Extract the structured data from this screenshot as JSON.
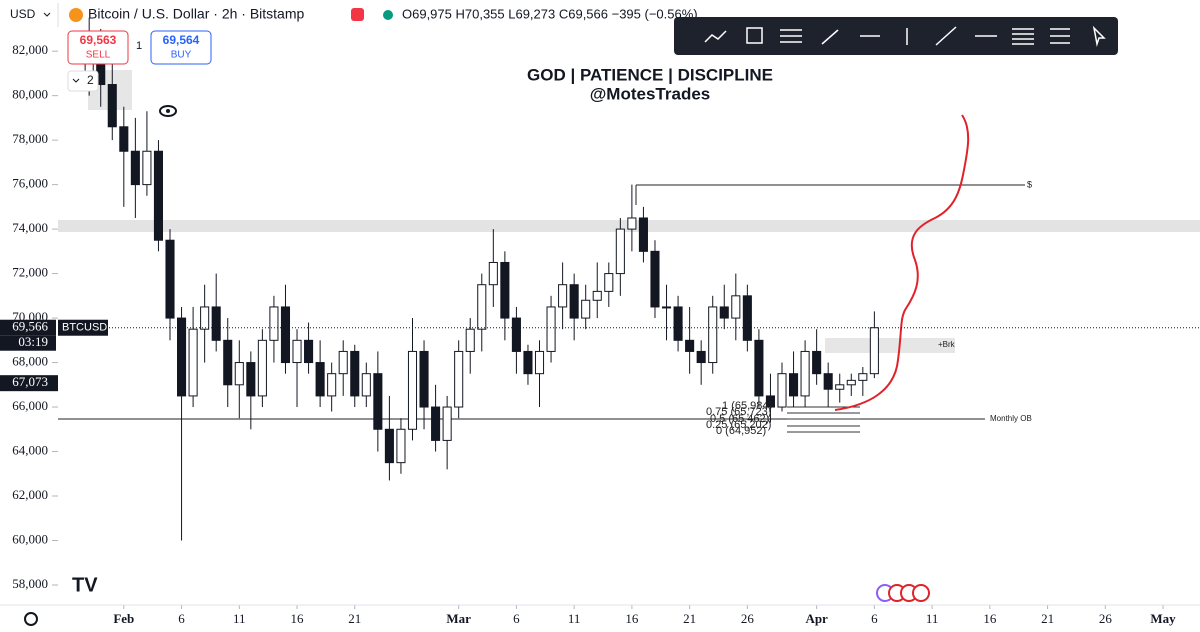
{
  "header": {
    "currency": "USD",
    "instrument": "Bitcoin / U.S. Dollar · 2h · Bitstamp",
    "ohlc": "O69,975 H70,355 L69,273 C69,566 −395 (−0.56%)"
  },
  "trade": {
    "sell_price": "69,563",
    "sell_label": "SELL",
    "quantity": "1",
    "buy_price": "69,564",
    "buy_label": "BUY",
    "collapsed_count": "2"
  },
  "chart_data": {
    "type": "candlestick",
    "title": "GOD | PATIENCE | DISCIPLINE",
    "subtitle": "@MotesTrades",
    "x": [
      -3,
      -2,
      -1,
      0,
      1,
      2,
      3,
      4,
      5,
      6,
      7,
      8,
      9,
      10,
      11,
      12,
      13,
      14,
      15,
      16,
      17,
      18,
      19,
      20,
      21,
      22,
      23,
      24,
      25,
      26,
      27,
      28,
      29,
      30,
      31,
      32,
      33,
      34,
      35,
      36,
      37,
      38,
      39,
      40,
      41,
      42,
      43,
      44,
      45,
      46,
      47,
      48,
      49,
      50,
      51,
      52,
      53,
      54,
      55,
      56,
      57,
      58,
      59,
      60,
      61,
      62,
      63,
      64,
      65
    ],
    "open": [
      81000,
      82500,
      80500,
      78600,
      77500,
      76000,
      77500,
      73500,
      70000,
      66500,
      69500,
      70500,
      69000,
      67000,
      68000,
      66500,
      69000,
      70500,
      68000,
      69000,
      68000,
      66500,
      67500,
      68500,
      66500,
      67500,
      65000,
      63500,
      65000,
      68500,
      66000,
      64500,
      66000,
      68500,
      69500,
      71500,
      72500,
      70000,
      68500,
      67500,
      68500,
      70500,
      71500,
      70000,
      70800,
      71200,
      72000,
      74000,
      74500,
      73000,
      70500,
      70500,
      69000,
      68500,
      68000,
      70500,
      70000,
      71000,
      69000,
      66500,
      66000,
      67500,
      66500,
      68500,
      67500,
      66800,
      67000,
      67200,
      67500
    ],
    "high": [
      83500,
      83000,
      81500,
      79500,
      79000,
      79300,
      78000,
      74000,
      70500,
      70500,
      71500,
      72000,
      70000,
      69000,
      68500,
      69500,
      71000,
      71500,
      69500,
      69800,
      69000,
      68000,
      69000,
      68800,
      68000,
      68500,
      66500,
      65500,
      70000,
      69000,
      67000,
      66500,
      69000,
      70000,
      72000,
      74000,
      73000,
      70500,
      68800,
      69000,
      71000,
      72500,
      72000,
      71500,
      72500,
      72500,
      74500,
      76000,
      75000,
      73500,
      71500,
      71000,
      70500,
      69000,
      71000,
      71500,
      72000,
      71500,
      69500,
      67500,
      68000,
      68500,
      69000,
      69500,
      68000,
      67500,
      67500,
      67800,
      70300
    ],
    "low": [
      80000,
      79500,
      78000,
      75000,
      74500,
      75500,
      73000,
      69000,
      60000,
      66000,
      68000,
      68500,
      66000,
      65500,
      65000,
      66000,
      68000,
      67500,
      66000,
      67500,
      66000,
      65800,
      66500,
      66000,
      66000,
      64000,
      62700,
      63000,
      64500,
      65000,
      64000,
      63200,
      65500,
      67500,
      68500,
      70500,
      69000,
      67500,
      67000,
      66000,
      68000,
      69500,
      69000,
      69500,
      70000,
      70500,
      71000,
      73000,
      72500,
      70000,
      69000,
      68500,
      67500,
      67000,
      67500,
      69500,
      69000,
      68500,
      66000,
      65300,
      65800,
      66000,
      66000,
      67000,
      66000,
      66200,
      66500,
      66500,
      67300
    ],
    "close": [
      82500,
      80500,
      78600,
      77500,
      76000,
      77500,
      73500,
      70000,
      66500,
      69500,
      70500,
      69000,
      67000,
      68000,
      66500,
      69000,
      70500,
      68000,
      69000,
      68000,
      66500,
      67500,
      68500,
      66500,
      67500,
      65000,
      63500,
      65000,
      68500,
      66000,
      64500,
      66000,
      68500,
      69500,
      71500,
      72500,
      70000,
      68500,
      67500,
      68500,
      70500,
      71500,
      70000,
      70800,
      71200,
      72000,
      74000,
      74500,
      73000,
      70500,
      70500,
      69000,
      68500,
      68000,
      70500,
      70000,
      71000,
      69000,
      66500,
      66000,
      67500,
      66500,
      68500,
      67500,
      66800,
      67000,
      67200,
      67500,
      69566
    ],
    "xlim": [
      -5.7,
      93.2
    ],
    "xticks": [
      {
        "value": 0,
        "label": "Feb"
      },
      {
        "value": 5,
        "label": "6"
      },
      {
        "value": 10,
        "label": "11"
      },
      {
        "value": 15,
        "label": "16"
      },
      {
        "value": 20,
        "label": "21"
      },
      {
        "value": 29,
        "label": "Mar"
      },
      {
        "value": 34,
        "label": "6"
      },
      {
        "value": 39,
        "label": "11"
      },
      {
        "value": 44,
        "label": "16"
      },
      {
        "value": 49,
        "label": "21"
      },
      {
        "value": 54,
        "label": "26"
      },
      {
        "value": 60,
        "label": "Apr"
      },
      {
        "value": 65,
        "label": "6"
      },
      {
        "value": 70,
        "label": "11"
      },
      {
        "value": 75,
        "label": "16"
      },
      {
        "value": 80,
        "label": "21"
      },
      {
        "value": 85,
        "label": "26"
      },
      {
        "value": 90,
        "label": "May"
      }
    ],
    "ylim": [
      57100,
      84300
    ],
    "yticks": [
      {
        "value": 58000,
        "label": "58,000"
      },
      {
        "value": 60000,
        "label": "60,000"
      },
      {
        "value": 62000,
        "label": "62,000"
      },
      {
        "value": 64000,
        "label": "64,000"
      },
      {
        "value": 66000,
        "label": "66,000"
      },
      {
        "value": 68000,
        "label": "68,000"
      },
      {
        "value": 70000,
        "label": "70,000"
      },
      {
        "value": 72000,
        "label": "72,000"
      },
      {
        "value": 74000,
        "label": "74,000"
      },
      {
        "value": 76000,
        "label": "76,000"
      },
      {
        "value": 78000,
        "label": "78,000"
      },
      {
        "value": 80000,
        "label": "80,000"
      },
      {
        "value": 82000,
        "label": "82,000"
      }
    ],
    "last_price": {
      "value": 69566,
      "label": "69,566"
    },
    "symbol": "BTCUSD",
    "countdown": "03:19",
    "alert_price": {
      "value": 67073,
      "label": "67,073"
    },
    "annotations": {
      "target": "$",
      "breakout": "+Brk",
      "monthly_ob": "Monthly OB"
    },
    "fib_labels": [
      "1 (65,984)",
      "0.75 (65,723)",
      "0.5 (65,462)",
      "0.25 (65,202)",
      "0 (64,952)"
    ]
  }
}
